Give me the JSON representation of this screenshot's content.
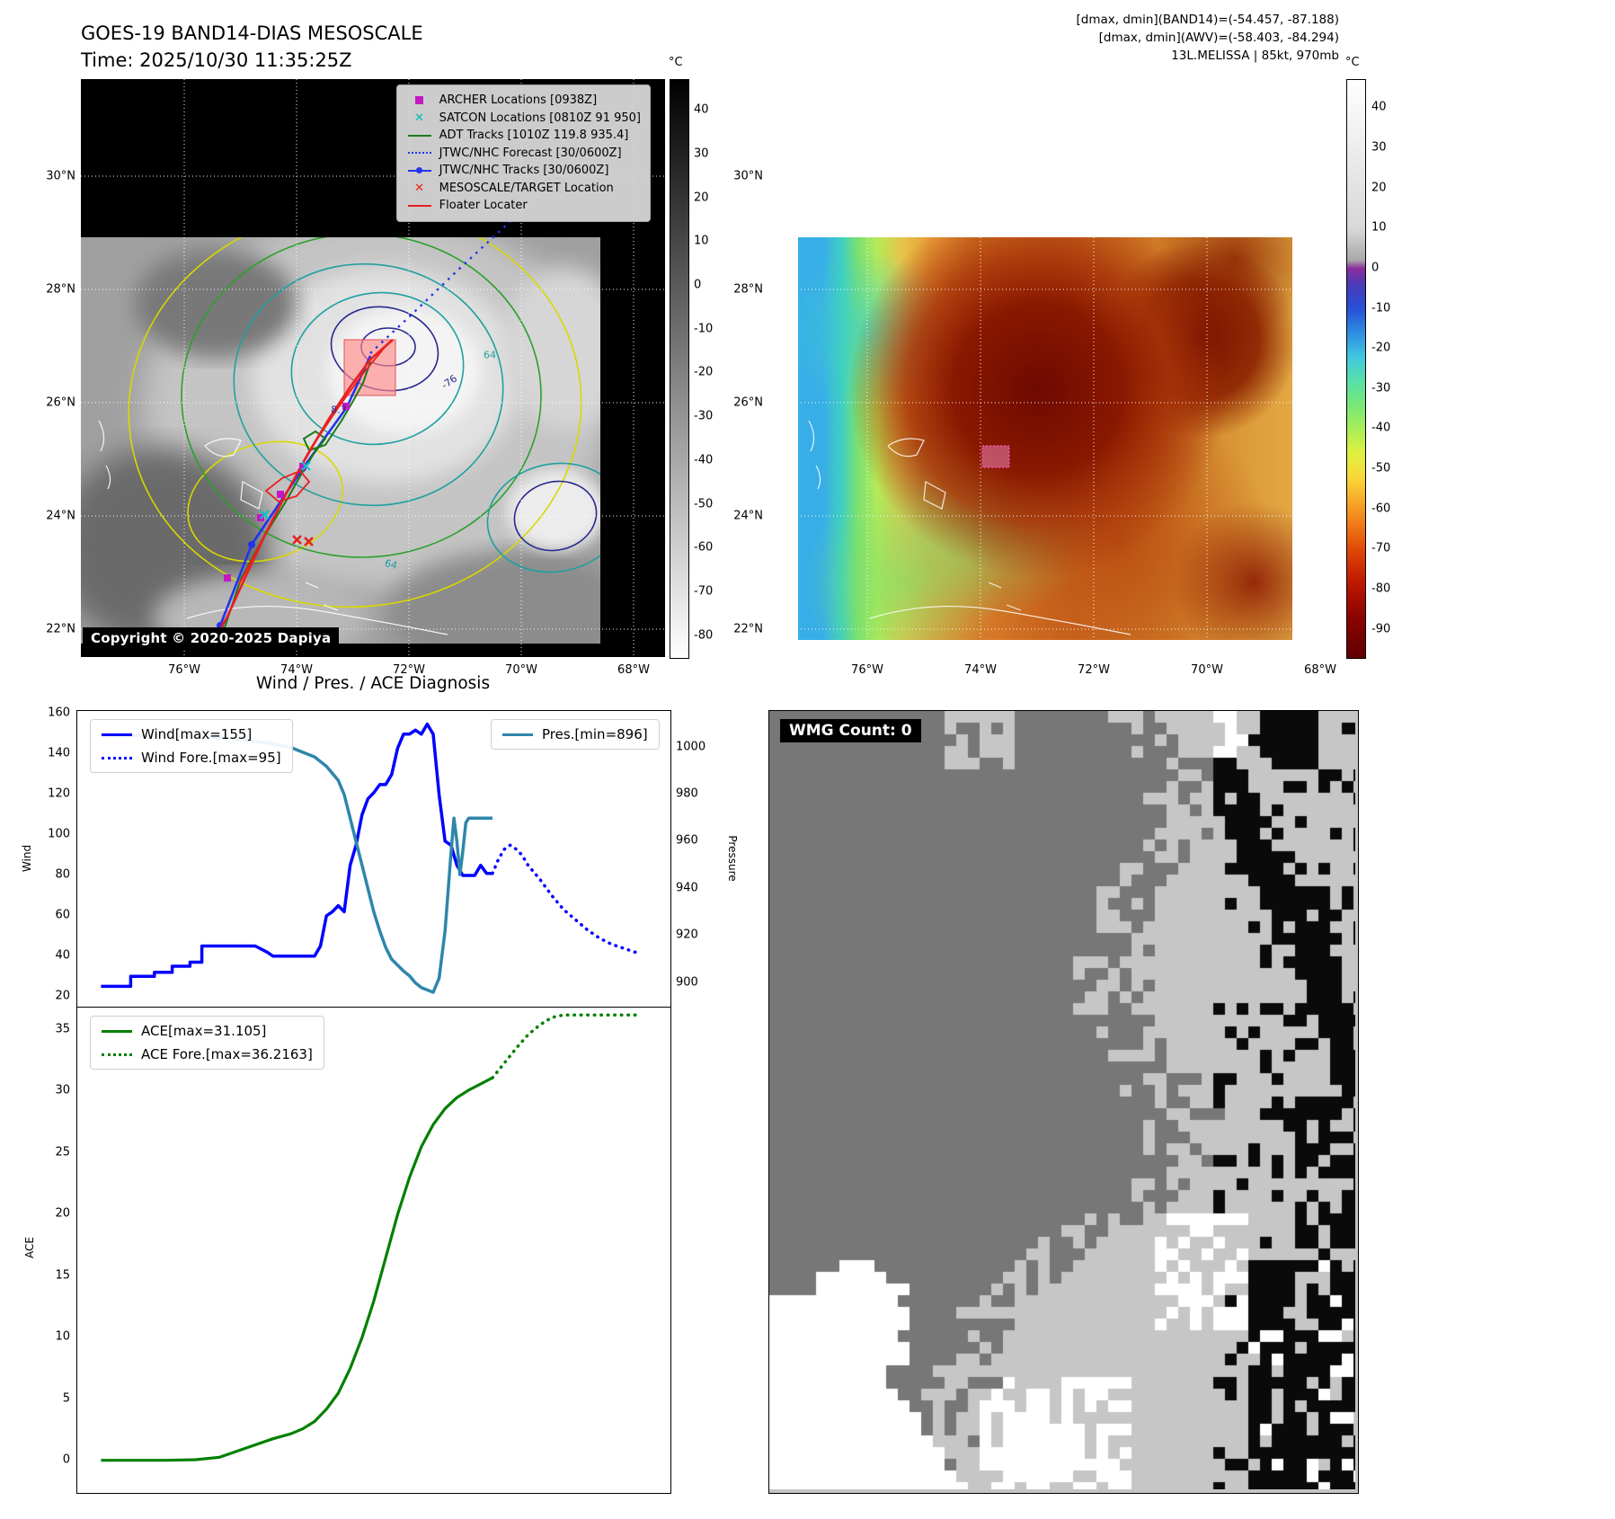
{
  "band14": {
    "title": "GOES-19 BAND14-DIAS MESOSCALE",
    "time": "Time: 2025/10/30 11:35:25Z",
    "copyright": "Copyright © 2020-2025 Dapiya",
    "colorbar_unit": "°C",
    "colorbar_ticks": [
      "40",
      "30",
      "20",
      "10",
      "0",
      "-10",
      "-20",
      "-30",
      "-40",
      "-50",
      "-60",
      "-70",
      "-80"
    ],
    "lat_ticks": [
      "30°N",
      "28°N",
      "26°N",
      "24°N",
      "22°N"
    ],
    "lon_ticks": [
      "76°W",
      "74°W",
      "72°W",
      "70°W",
      "68°W"
    ],
    "contour_labels": [
      "-76",
      "8.7",
      "64",
      "64"
    ],
    "legend": [
      {
        "label": "ARCHER Locations [0938Z]",
        "marker": "square",
        "color": "#c318c3"
      },
      {
        "label": "SATCON Locations [0810Z 91 950]",
        "marker": "x",
        "color": "#00bcbc"
      },
      {
        "label": "ADT Tracks [1010Z 119.8 935.4]",
        "marker": "line",
        "color": "#1a7a1a"
      },
      {
        "label": "JTWC/NHC Forecast [30/0600Z]",
        "marker": "dotted",
        "color": "#2233ee"
      },
      {
        "label": "JTWC/NHC Tracks [30/0600Z]",
        "marker": "line-dot",
        "color": "#2233ee"
      },
      {
        "label": "MESOSCALE/TARGET Location",
        "marker": "x-bold",
        "color": "#e82020"
      },
      {
        "label": "Floater Locater",
        "marker": "line",
        "color": "#e82020"
      }
    ]
  },
  "awv": {
    "header_lines": [
      "[dmax, dmin](BAND14)=(-54.457, -87.188)",
      "[dmax, dmin](AWV)=(-58.403, -84.294)",
      "13L.MELISSA | 85kt, 970mb"
    ],
    "colorbar_unit": "°C",
    "colorbar_ticks": [
      "40",
      "30",
      "20",
      "10",
      "0",
      "-10",
      "-20",
      "-30",
      "-40",
      "-50",
      "-60",
      "-70",
      "-80",
      "-90"
    ],
    "lat_ticks": [
      "30°N",
      "28°N",
      "26°N",
      "24°N",
      "22°N"
    ],
    "lon_ticks": [
      "76°W",
      "74°W",
      "72°W",
      "70°W",
      "68°W"
    ]
  },
  "diagnosis": {
    "title": "Wind / Pres. / ACE Diagnosis",
    "wind_ylabel": "Wind",
    "pressure_ylabel": "Pressure",
    "ace_ylabel": "ACE",
    "legend_wind": "Wind[max=155]",
    "legend_wind_fore": "Wind Fore.[max=95]",
    "legend_pres": "Pres.[min=896]",
    "legend_ace": "ACE[max=31.105]",
    "legend_ace_fore": "ACE Fore.[max=36.2163]"
  },
  "wmg": {
    "label": "WMG Count: 0"
  },
  "chart_data": [
    {
      "type": "line",
      "title": "Wind / Pres. Diagnosis",
      "xlim": [
        0,
        100
      ],
      "left_axis": {
        "label": "Wind",
        "ylim": [
          14.5,
          161.5
        ],
        "ticks": [
          160,
          140,
          120,
          100,
          80,
          60,
          40,
          20
        ]
      },
      "right_axis": {
        "label": "Pressure",
        "ylim": [
          889.5,
          1015.5
        ],
        "ticks": [
          1000,
          980,
          960,
          940,
          920,
          900
        ]
      },
      "series": [
        {
          "name": "Wind[max=155]",
          "axis": "left",
          "style": "solid",
          "color": "#0000ff",
          "width": 3.5,
          "points": [
            [
              4,
              25
            ],
            [
              9,
              25
            ],
            [
              9,
              30
            ],
            [
              13,
              30
            ],
            [
              13,
              32
            ],
            [
              16,
              32
            ],
            [
              16,
              35
            ],
            [
              19,
              35
            ],
            [
              19,
              37
            ],
            [
              21,
              37
            ],
            [
              21,
              45
            ],
            [
              24,
              45
            ],
            [
              30,
              45
            ],
            [
              32,
              42
            ],
            [
              33,
              40
            ],
            [
              40,
              40
            ],
            [
              41,
              45
            ],
            [
              42,
              60
            ],
            [
              43,
              62
            ],
            [
              44,
              65
            ],
            [
              45,
              62
            ],
            [
              46,
              85
            ],
            [
              47,
              95
            ],
            [
              48,
              110
            ],
            [
              49,
              118
            ],
            [
              50,
              121
            ],
            [
              51,
              125
            ],
            [
              52,
              125
            ],
            [
              53,
              130
            ],
            [
              54,
              143
            ],
            [
              55,
              150
            ],
            [
              56,
              150
            ],
            [
              57,
              152
            ],
            [
              58,
              150
            ],
            [
              59,
              155
            ],
            [
              60,
              150
            ],
            [
              61,
              120
            ],
            [
              62,
              97
            ],
            [
              63,
              95
            ],
            [
              64,
              85
            ],
            [
              65,
              80
            ],
            [
              67,
              80
            ],
            [
              68,
              85
            ],
            [
              69,
              81
            ],
            [
              70,
              81
            ]
          ]
        },
        {
          "name": "Wind Fore.[max=95]",
          "axis": "left",
          "style": "dotted",
          "color": "#0000ff",
          "width": 3.5,
          "points": [
            [
              70,
              81
            ],
            [
              71,
              88
            ],
            [
              72,
              93
            ],
            [
              73,
              95
            ],
            [
              74,
              93
            ],
            [
              75,
              90
            ],
            [
              76,
              85
            ],
            [
              78,
              78
            ],
            [
              80,
              70
            ],
            [
              82,
              63
            ],
            [
              84,
              58
            ],
            [
              86,
              53
            ],
            [
              88,
              49
            ],
            [
              90,
              46
            ],
            [
              92,
              44
            ],
            [
              94,
              42
            ],
            [
              95,
              42
            ]
          ]
        },
        {
          "name": "Pres.[min=896]",
          "axis": "right",
          "style": "solid",
          "color": "#2e86ab",
          "width": 3.5,
          "points": [
            [
              4,
              1005
            ],
            [
              15,
              1005
            ],
            [
              25,
              1004
            ],
            [
              32,
              1002
            ],
            [
              36,
              1000
            ],
            [
              40,
              996
            ],
            [
              42,
              992
            ],
            [
              44,
              986
            ],
            [
              45,
              980
            ],
            [
              46,
              970
            ],
            [
              47,
              960
            ],
            [
              48,
              950
            ],
            [
              49,
              940
            ],
            [
              50,
              930
            ],
            [
              51,
              922
            ],
            [
              52,
              915
            ],
            [
              53,
              910
            ],
            [
              55,
              905
            ],
            [
              56,
              903
            ],
            [
              57,
              900
            ],
            [
              58,
              898
            ],
            [
              59,
              897
            ],
            [
              60,
              896
            ],
            [
              61,
              902
            ],
            [
              62,
              922
            ],
            [
              63,
              955
            ],
            [
              63.5,
              970
            ],
            [
              64,
              960
            ],
            [
              64.5,
              946
            ],
            [
              65,
              956
            ],
            [
              65.5,
              968
            ],
            [
              66,
              970
            ],
            [
              68,
              970
            ],
            [
              70,
              970
            ]
          ]
        }
      ]
    },
    {
      "type": "line",
      "title": "ACE Diagnosis",
      "xlim": [
        0,
        100
      ],
      "left_axis": {
        "label": "ACE",
        "ylim": [
          -2.6,
          36.8
        ],
        "ticks": [
          35,
          30,
          25,
          20,
          15,
          10,
          5,
          0
        ]
      },
      "series": [
        {
          "name": "ACE[max=31.105]",
          "axis": "left",
          "style": "solid",
          "color": "#008000",
          "width": 3.2,
          "points": [
            [
              4,
              0.05
            ],
            [
              15,
              0.05
            ],
            [
              20,
              0.1
            ],
            [
              24,
              0.3
            ],
            [
              27,
              0.8
            ],
            [
              30,
              1.3
            ],
            [
              33,
              1.8
            ],
            [
              36,
              2.2
            ],
            [
              38,
              2.6
            ],
            [
              40,
              3.2
            ],
            [
              42,
              4.2
            ],
            [
              44,
              5.5
            ],
            [
              46,
              7.5
            ],
            [
              48,
              10
            ],
            [
              50,
              13
            ],
            [
              52,
              16.5
            ],
            [
              54,
              20
            ],
            [
              56,
              23
            ],
            [
              58,
              25.5
            ],
            [
              60,
              27.3
            ],
            [
              62,
              28.6
            ],
            [
              64,
              29.5
            ],
            [
              66,
              30.1
            ],
            [
              68,
              30.6
            ],
            [
              70,
              31.1
            ]
          ]
        },
        {
          "name": "ACE Fore.[max=36.2163]",
          "axis": "left",
          "style": "dotted",
          "color": "#008000",
          "width": 3.5,
          "points": [
            [
              70,
              31.1
            ],
            [
              72,
              32.3
            ],
            [
              74,
              33.5
            ],
            [
              76,
              34.6
            ],
            [
              78,
              35.4
            ],
            [
              80,
              36.0
            ],
            [
              82,
              36.2
            ],
            [
              85,
              36.2
            ],
            [
              88,
              36.2
            ],
            [
              91,
              36.2
            ],
            [
              95,
              36.2
            ]
          ]
        }
      ]
    }
  ]
}
